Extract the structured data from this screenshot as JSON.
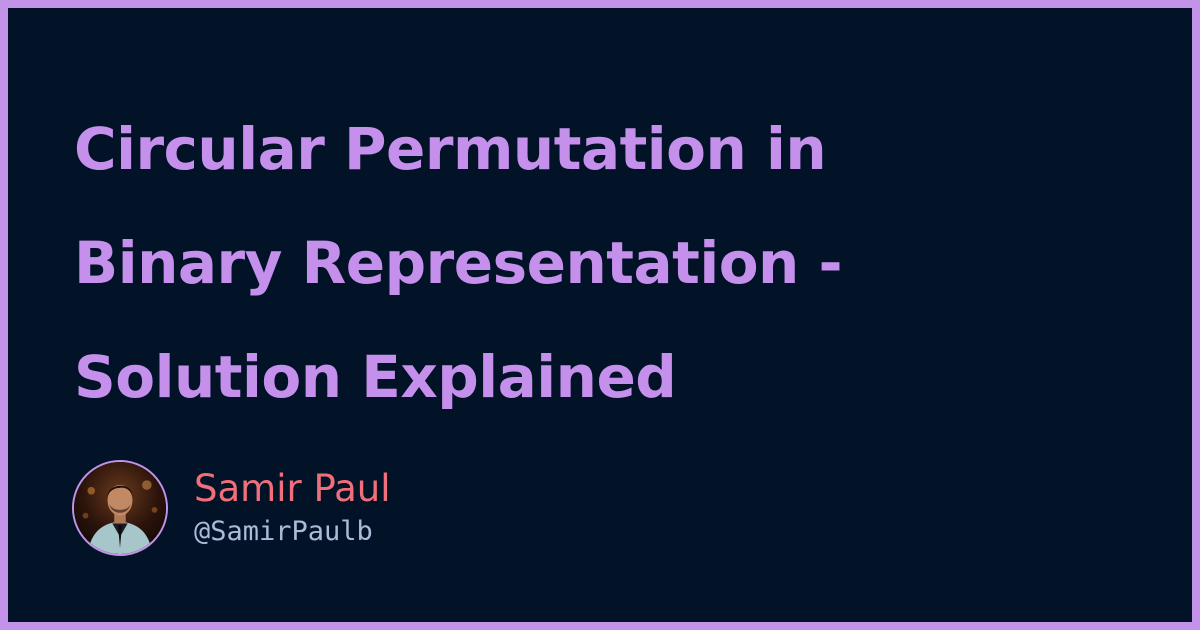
{
  "card": {
    "title_lines": [
      "Circular Permutation in",
      "Binary Representation -",
      "Solution Explained"
    ]
  },
  "author": {
    "name": "Samir Paul",
    "handle": "@SamirPaulb",
    "avatar_icon": "person-photo-avatar"
  },
  "colors": {
    "frame": "#c293e8",
    "background": "#021227",
    "title": "#c590eb",
    "author_name": "#f06f7b",
    "author_handle": "#a9bdd8"
  }
}
